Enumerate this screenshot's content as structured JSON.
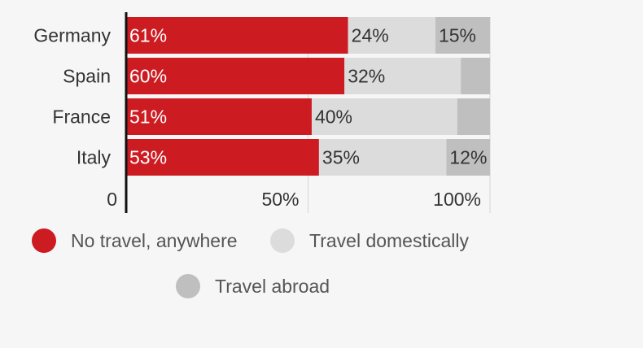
{
  "chart_data": {
    "type": "bar",
    "orientation": "horizontal",
    "stacked": true,
    "categories": [
      "Germany",
      "Spain",
      "France",
      "Italy"
    ],
    "series": [
      {
        "name": "No travel, anywhere",
        "color": "#cc1c22",
        "values": [
          61,
          60,
          51,
          53
        ],
        "labels": [
          "61%",
          "60%",
          "51%",
          "53%"
        ]
      },
      {
        "name": "Travel domestically",
        "color": "#dcdcdc",
        "values": [
          24,
          32,
          40,
          35
        ],
        "labels": [
          "24%",
          "32%",
          "40%",
          "35%"
        ]
      },
      {
        "name": "Travel abroad",
        "color": "#bfbfbf",
        "values": [
          15,
          8,
          9,
          12
        ],
        "labels": [
          "15%",
          "",
          "",
          "12%"
        ]
      }
    ],
    "x_ticks": [
      {
        "value": 0,
        "label": "0"
      },
      {
        "value": 50,
        "label": "50%"
      },
      {
        "value": 100,
        "label": "100%"
      }
    ],
    "xlim": [
      0,
      100
    ],
    "grid": true,
    "legend_position": "bottom"
  },
  "legend": {
    "items": [
      {
        "label": "No travel, anywhere",
        "color": "#cc1c22"
      },
      {
        "label": "Travel domestically",
        "color": "#dcdcdc"
      },
      {
        "label": "Travel abroad",
        "color": "#bfbfbf"
      }
    ]
  }
}
